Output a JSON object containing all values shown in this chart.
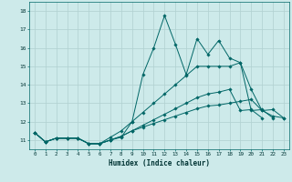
{
  "title": "",
  "xlabel": "Humidex (Indice chaleur)",
  "ylabel": "",
  "background_color": "#cdeaea",
  "line_color": "#006666",
  "grid_color": "#b0d0d0",
  "xlim": [
    -0.5,
    23.5
  ],
  "ylim": [
    10.5,
    18.5
  ],
  "yticks": [
    11,
    12,
    13,
    14,
    15,
    16,
    17,
    18
  ],
  "xticks": [
    0,
    1,
    2,
    3,
    4,
    5,
    6,
    7,
    8,
    9,
    10,
    11,
    12,
    13,
    14,
    15,
    16,
    17,
    18,
    19,
    20,
    21,
    22,
    23
  ],
  "series": [
    [
      11.4,
      10.9,
      11.1,
      11.1,
      11.1,
      10.8,
      10.8,
      11.0,
      11.15,
      12.0,
      14.55,
      16.0,
      17.75,
      16.2,
      14.55,
      16.5,
      15.65,
      16.4,
      15.45,
      15.2,
      13.75,
      12.6,
      12.65,
      12.2
    ],
    [
      11.4,
      10.9,
      11.1,
      11.1,
      11.1,
      10.8,
      10.8,
      11.15,
      11.5,
      12.0,
      12.5,
      13.0,
      13.5,
      14.0,
      14.5,
      15.0,
      15.0,
      15.0,
      15.0,
      15.2,
      12.6,
      12.65,
      12.2,
      null
    ],
    [
      11.4,
      10.9,
      11.1,
      11.1,
      11.1,
      10.8,
      10.8,
      11.0,
      11.2,
      11.5,
      11.8,
      12.1,
      12.4,
      12.7,
      13.0,
      13.3,
      13.5,
      13.6,
      13.75,
      12.6,
      12.65,
      12.2,
      null,
      null
    ],
    [
      11.4,
      10.9,
      11.1,
      11.1,
      11.1,
      10.8,
      10.8,
      11.0,
      11.2,
      11.5,
      11.7,
      11.9,
      12.1,
      12.3,
      12.5,
      12.7,
      12.85,
      12.9,
      13.0,
      13.1,
      13.2,
      12.6,
      12.3,
      12.2
    ]
  ]
}
